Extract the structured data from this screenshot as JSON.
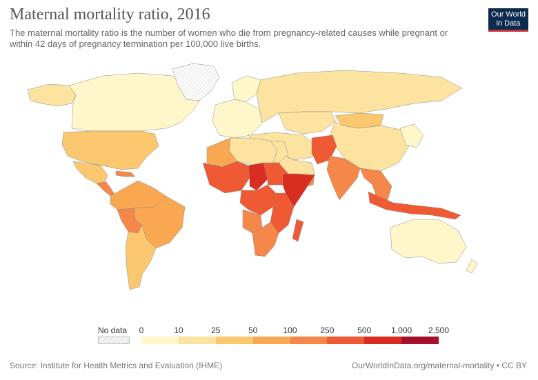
{
  "header": {
    "title": "Maternal mortality ratio, 2016",
    "subtitle": "The maternal mortality ratio is the number of women who die from pregnancy-related causes while pregnant or within 42 days of pregnancy termination per 100,000 live births.",
    "logo_line1": "Our World",
    "logo_line2": "in Data"
  },
  "legend": {
    "no_data_label": "No data",
    "ticks": [
      "0",
      "10",
      "25",
      "50",
      "100",
      "250",
      "500",
      "1,000",
      "2,500"
    ],
    "colors": [
      "#fff6c9",
      "#fde3a0",
      "#fbc870",
      "#f9a851",
      "#f6874a",
      "#ef5a34",
      "#d92d22",
      "#a5102c"
    ]
  },
  "footer": {
    "source": "Source: Institute for Health Metrics and Evaluation (IHME)",
    "credit": "OurWorldInData.org/maternal-mortality • CC BY"
  },
  "map_data": {
    "type": "choropleth",
    "regions": [
      {
        "name": "Canada",
        "bin": 0
      },
      {
        "name": "Alaska",
        "bin": 1
      },
      {
        "name": "United States",
        "bin": 2
      },
      {
        "name": "Mexico",
        "bin": 2
      },
      {
        "name": "Central America",
        "bin": 4
      },
      {
        "name": "Caribbean",
        "bin": 4
      },
      {
        "name": "Northern South America",
        "bin": 3
      },
      {
        "name": "Brazil",
        "bin": 3
      },
      {
        "name": "Bolivia",
        "bin": 4
      },
      {
        "name": "Southern Cone",
        "bin": 2
      },
      {
        "name": "Greenland",
        "bin": null
      },
      {
        "name": "Scandinavia",
        "bin": 0
      },
      {
        "name": "Europe",
        "bin": 0
      },
      {
        "name": "Russia",
        "bin": 1
      },
      {
        "name": "Kazakhstan",
        "bin": 1
      },
      {
        "name": "Mongolia",
        "bin": 2
      },
      {
        "name": "China",
        "bin": 1
      },
      {
        "name": "Korea and Japan",
        "bin": 0
      },
      {
        "name": "Turkey and Iran",
        "bin": 1
      },
      {
        "name": "Arabian Peninsula",
        "bin": 1
      },
      {
        "name": "Yemen",
        "bin": 4
      },
      {
        "name": "Afghanistan and Pakistan",
        "bin": 5
      },
      {
        "name": "India",
        "bin": 4
      },
      {
        "name": "Southeast Asia",
        "bin": 4
      },
      {
        "name": "Indonesia and New Guinea",
        "bin": 5
      },
      {
        "name": "North Africa",
        "bin": 1
      },
      {
        "name": "Egypt",
        "bin": 1
      },
      {
        "name": "Mauritania and Morocco",
        "bin": 3
      },
      {
        "name": "West Africa",
        "bin": 5
      },
      {
        "name": "Chad",
        "bin": 6
      },
      {
        "name": "Sudan",
        "bin": 5
      },
      {
        "name": "Horn of Africa",
        "bin": 6
      },
      {
        "name": "Central Africa",
        "bin": 5
      },
      {
        "name": "East Africa",
        "bin": 5
      },
      {
        "name": "Angola",
        "bin": 4
      },
      {
        "name": "Southern Africa",
        "bin": 4
      },
      {
        "name": "Madagascar",
        "bin": 5
      },
      {
        "name": "Australia",
        "bin": 0
      },
      {
        "name": "New Zealand",
        "bin": 0
      }
    ]
  }
}
